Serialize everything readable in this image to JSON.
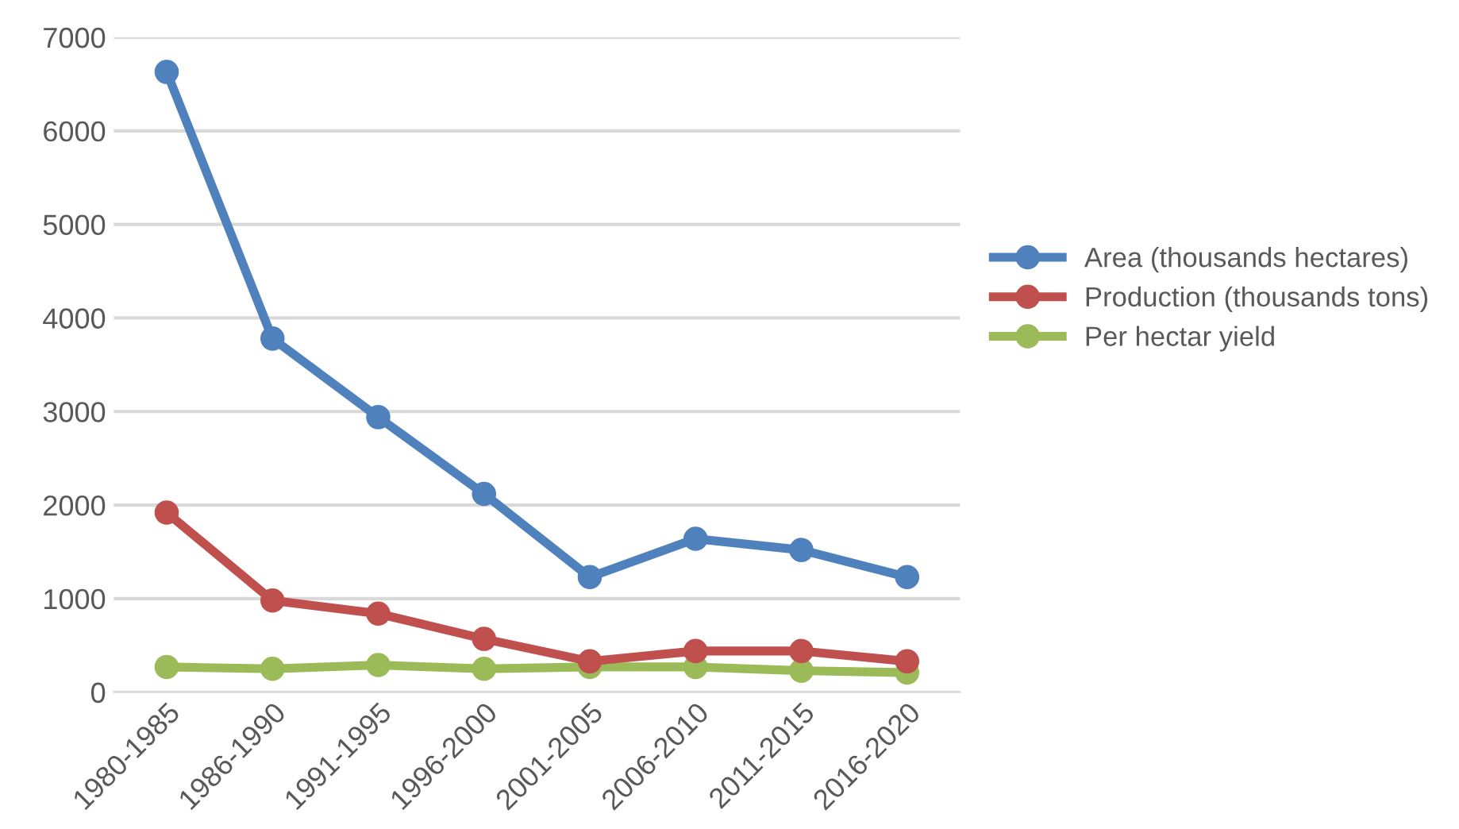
{
  "chart_data": {
    "type": "line",
    "categories": [
      "1980-1985",
      "1986-1990",
      "1991-1995",
      "1996-2000",
      "2001-2005",
      "2006-2010",
      "2011-2015",
      "2016-2020"
    ],
    "series": [
      {
        "name": "Area (thousands hectares)",
        "color": "#4f81bd",
        "values": [
          6630,
          3780,
          2940,
          2120,
          1230,
          1640,
          1520,
          1230
        ]
      },
      {
        "name": "Production (thousands tons)",
        "color": "#c0504d",
        "values": [
          1920,
          980,
          840,
          570,
          330,
          440,
          440,
          330
        ]
      },
      {
        "name": "Per hectar yield",
        "color": "#9bbb59",
        "values": [
          270,
          250,
          290,
          250,
          270,
          270,
          230,
          210
        ]
      }
    ],
    "ylim": [
      0,
      7000
    ],
    "yticks": [
      0,
      1000,
      2000,
      3000,
      4000,
      5000,
      6000,
      7000
    ],
    "grid": "y",
    "legend": "right",
    "marker": "circle",
    "line_style": "solid"
  }
}
